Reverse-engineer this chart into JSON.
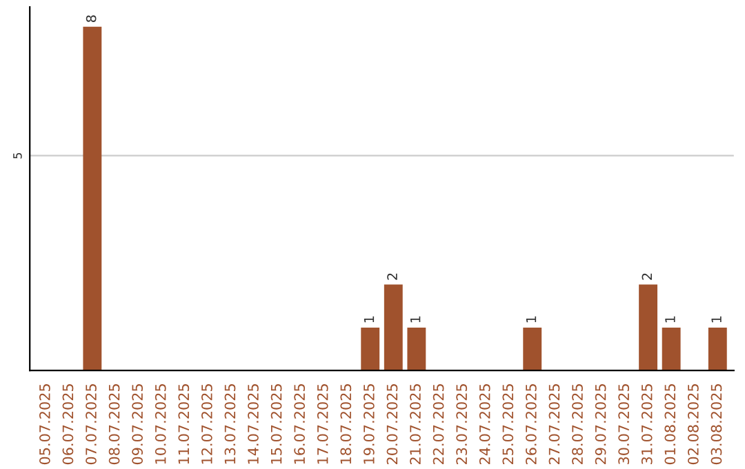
{
  "chart_data": {
    "type": "bar",
    "categories": [
      "05.07.2025",
      "06.07.2025",
      "07.07.2025",
      "08.07.2025",
      "09.07.2025",
      "10.07.2025",
      "11.07.2025",
      "12.07.2025",
      "13.07.2025",
      "14.07.2025",
      "15.07.2025",
      "16.07.2025",
      "17.07.2025",
      "18.07.2025",
      "19.07.2025",
      "20.07.2025",
      "21.07.2025",
      "22.07.2025",
      "23.07.2025",
      "24.07.2025",
      "25.07.2025",
      "26.07.2025",
      "27.07.2025",
      "28.07.2025",
      "29.07.2025",
      "30.07.2025",
      "31.07.2025",
      "01.08.2025",
      "02.08.2025",
      "03.08.2025"
    ],
    "values": [
      0,
      0,
      8,
      0,
      0,
      0,
      0,
      0,
      0,
      0,
      0,
      0,
      0,
      0,
      1,
      2,
      1,
      0,
      0,
      0,
      0,
      1,
      0,
      0,
      0,
      0,
      2,
      1,
      0,
      1
    ],
    "value_labels": [
      null,
      null,
      "8",
      null,
      null,
      null,
      null,
      null,
      null,
      null,
      null,
      null,
      null,
      null,
      "1",
      "2",
      "1",
      null,
      null,
      null,
      null,
      "1",
      null,
      null,
      null,
      null,
      "2",
      "1",
      null,
      "1"
    ],
    "color": "#a0522d",
    "ylim": [
      0,
      8.46
    ],
    "yticks": [
      5
    ],
    "grid": "y"
  }
}
